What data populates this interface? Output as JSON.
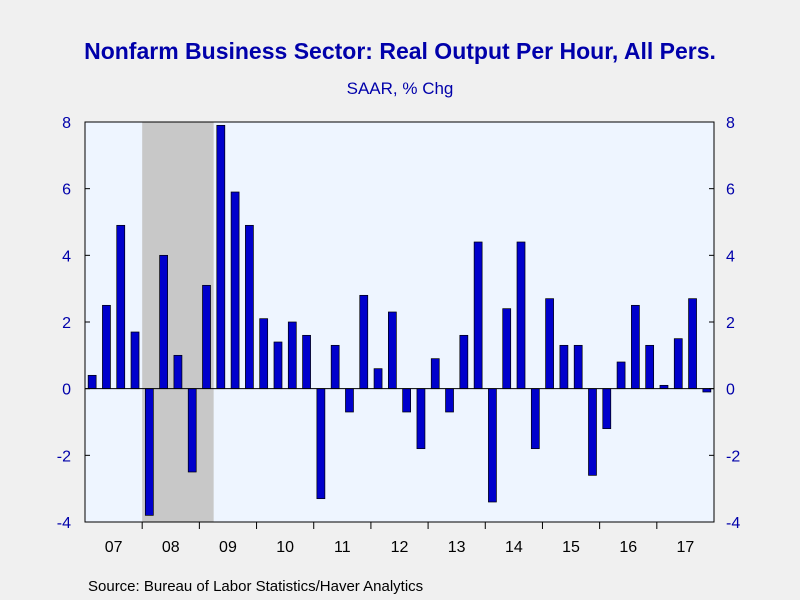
{
  "chart_data": {
    "type": "bar",
    "title": "Nonfarm Business Sector: Real Output Per Hour, All Pers.",
    "subtitle": "SAAR, % Chg",
    "source": "Source:  Bureau of Labor Statistics/Haver Analytics",
    "ylim": [
      -4,
      8
    ],
    "yticks": [
      "8",
      "6",
      "4",
      "2",
      "0",
      "-2",
      "-4"
    ],
    "ytick_values": [
      8,
      6,
      4,
      2,
      0,
      -2,
      -4
    ],
    "x_year_labels": [
      "07",
      "08",
      "09",
      "10",
      "11",
      "12",
      "13",
      "14",
      "15",
      "16",
      "17"
    ],
    "quarters_per_year": 4,
    "recession_shading": {
      "start_quarter_index": 4,
      "end_quarter_index": 9
    },
    "colors": {
      "bar": "#0000cc",
      "plot_bg": "#eef5ff",
      "recession": "#c8c8c8",
      "text": "#0000aa"
    },
    "grid": false,
    "values": [
      0.4,
      2.5,
      4.9,
      1.7,
      -3.8,
      4.0,
      1.0,
      -2.5,
      3.1,
      7.9,
      5.9,
      4.9,
      2.1,
      1.4,
      2.0,
      1.6,
      -3.3,
      1.3,
      -0.7,
      2.8,
      0.6,
      2.3,
      -0.7,
      -1.8,
      0.9,
      -0.7,
      1.6,
      4.4,
      -3.4,
      2.4,
      4.4,
      -1.8,
      2.7,
      1.3,
      1.3,
      -2.6,
      -1.2,
      0.8,
      2.5,
      1.3,
      0.1,
      1.5,
      2.7,
      -0.1
    ]
  }
}
